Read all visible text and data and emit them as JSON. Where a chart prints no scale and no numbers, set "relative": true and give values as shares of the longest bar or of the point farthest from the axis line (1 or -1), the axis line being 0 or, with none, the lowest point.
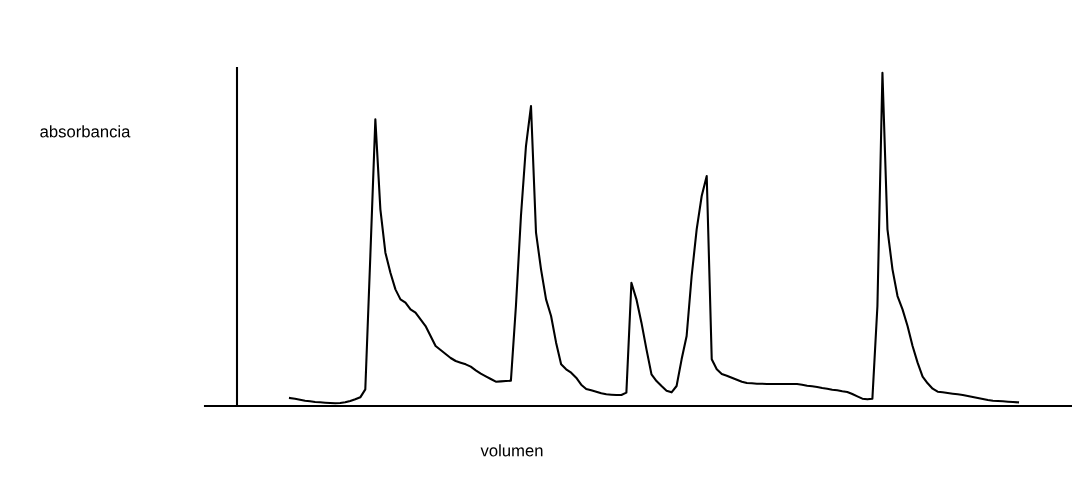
{
  "chart_data": {
    "type": "line",
    "relative": true,
    "xlabel": "volumen",
    "annotations": [
      "absorbancia"
    ],
    "legend": false,
    "marker": "none",
    "line_style": "solid",
    "categories": [
      null,
      null,
      null,
      null,
      null,
      null,
      null,
      null,
      null,
      null,
      null,
      null,
      null,
      null,
      null,
      null,
      null,
      null,
      null,
      null,
      null,
      null,
      null,
      null,
      null,
      null,
      null,
      null,
      null,
      null,
      null,
      null,
      null,
      null,
      null,
      null,
      null,
      null,
      null,
      null,
      null,
      null,
      null,
      null,
      null,
      null,
      null,
      null,
      null,
      null,
      null,
      null,
      null,
      null,
      null,
      null,
      null,
      null,
      null,
      null,
      null,
      null,
      null,
      null,
      null,
      null,
      null,
      null,
      null,
      null,
      null,
      null,
      null,
      null,
      null,
      null,
      null,
      null,
      null,
      null,
      null,
      null,
      null,
      null,
      null,
      null,
      null,
      null,
      null,
      null,
      null,
      null,
      null,
      null,
      null,
      null,
      null,
      null,
      null,
      null,
      null,
      null,
      null,
      null,
      null,
      null,
      null,
      null,
      null,
      null,
      null,
      null,
      null,
      null,
      null,
      null,
      null,
      null,
      null,
      null,
      null,
      null,
      null,
      null,
      null,
      null,
      null,
      null,
      null,
      null,
      null,
      null,
      null,
      null,
      null,
      null,
      null,
      null,
      null,
      null,
      null,
      null,
      null,
      null,
      null,
      null
    ],
    "series": [
      {
        "color": "#000000",
        "values": [
          0.024,
          0.022,
          0.019,
          0.016,
          0.014,
          0.012,
          0.011,
          0.01,
          0.009,
          0.008,
          0.009,
          0.011,
          0.015,
          0.02,
          0.026,
          0.05,
          0.45,
          0.86,
          0.59,
          0.46,
          0.4,
          0.35,
          0.32,
          0.31,
          0.29,
          0.28,
          0.26,
          0.24,
          0.21,
          0.18,
          0.168,
          0.156,
          0.144,
          0.135,
          0.13,
          0.125,
          0.118,
          0.107,
          0.097,
          0.089,
          0.081,
          0.073,
          0.074,
          0.075,
          0.076,
          0.3,
          0.57,
          0.78,
          0.9,
          0.52,
          0.41,
          0.32,
          0.27,
          0.19,
          0.125,
          0.11,
          0.1,
          0.085,
          0.064,
          0.051,
          0.047,
          0.043,
          0.038,
          0.035,
          0.034,
          0.033,
          0.033,
          0.04,
          0.37,
          0.32,
          0.25,
          0.17,
          0.095,
          0.075,
          0.06,
          0.046,
          0.041,
          0.06,
          0.14,
          0.21,
          0.39,
          0.53,
          0.63,
          0.69,
          0.14,
          0.11,
          0.096,
          0.091,
          0.085,
          0.079,
          0.073,
          0.069,
          0.068,
          0.067,
          0.067,
          0.066,
          0.066,
          0.066,
          0.066,
          0.066,
          0.066,
          0.066,
          0.064,
          0.061,
          0.059,
          0.057,
          0.054,
          0.052,
          0.049,
          0.047,
          0.044,
          0.042,
          0.036,
          0.029,
          0.022,
          0.02,
          0.022,
          0.3,
          1,
          0.53,
          0.41,
          0.33,
          0.29,
          0.24,
          0.18,
          0.13,
          0.088,
          0.068,
          0.052,
          0.043,
          0.041,
          0.039,
          0.037,
          0.035,
          0.033,
          0.03,
          0.027,
          0.024,
          0.021,
          0.018,
          0.016,
          0.015,
          0.014,
          0.013,
          0.012,
          0.011
        ]
      }
    ]
  }
}
